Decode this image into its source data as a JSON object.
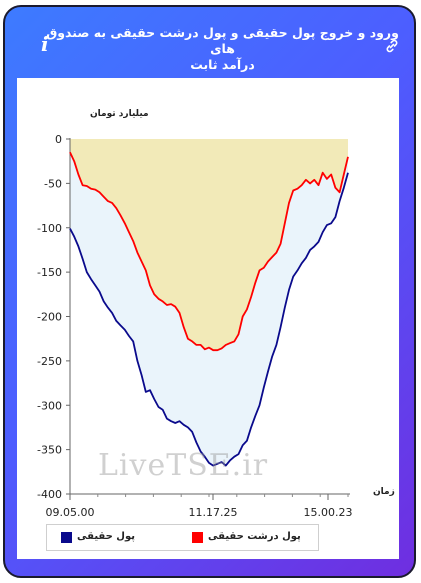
{
  "header": {
    "title_line1": "ورود و خروج پول حقیقی و پول درشت حقیقی به صندوق های",
    "title_line2": "درآمد ثابت",
    "info_icon": "i"
  },
  "chart_data": {
    "type": "area",
    "ylabel": "میلیارد تومان",
    "xlabel": "زمان",
    "ylim": [
      -400,
      0
    ],
    "yticks": [
      0,
      -50,
      -100,
      -150,
      -200,
      -250,
      -300,
      -350,
      -400
    ],
    "xticks": [
      "09.05.00",
      "11.17.25",
      "15.00.23"
    ],
    "grid": false,
    "legend": "bottom",
    "series": [
      {
        "name": "پول حقیقی",
        "color": "#0a0a8c",
        "fill": "#eaf4fb",
        "values": [
          -101,
          -110,
          -121,
          -135,
          -150,
          -158,
          -165,
          -172,
          -183,
          -190,
          -196,
          -205,
          -210,
          -215,
          -222,
          -228,
          -250,
          -266,
          -285,
          -283,
          -293,
          -302,
          -305,
          -315,
          -318,
          -320,
          -318,
          -322,
          -325,
          -330,
          -342,
          -352,
          -358,
          -365,
          -368,
          -366,
          -364,
          -368,
          -362,
          -358,
          -355,
          -345,
          -340,
          -325,
          -312,
          -300,
          -280,
          -262,
          -245,
          -232,
          -212,
          -190,
          -170,
          -155,
          -148,
          -140,
          -134,
          -125,
          -121,
          -116,
          -105,
          -97,
          -95,
          -88,
          -70,
          -55,
          -38
        ]
      },
      {
        "name": "پول درشت حقیقی",
        "color": "#ff0000",
        "fill": "#f2eab8",
        "values": [
          -15,
          -25,
          -40,
          -52,
          -53,
          -56,
          -57,
          -60,
          -65,
          -70,
          -72,
          -78,
          -86,
          -95,
          -105,
          -115,
          -128,
          -138,
          -148,
          -165,
          -175,
          -180,
          -183,
          -187,
          -186,
          -189,
          -196,
          -212,
          -225,
          -228,
          -232,
          -232,
          -237,
          -235,
          -238,
          -238,
          -236,
          -232,
          -230,
          -228,
          -220,
          -200,
          -192,
          -178,
          -162,
          -148,
          -145,
          -138,
          -133,
          -128,
          -118,
          -95,
          -72,
          -58,
          -56,
          -52,
          -46,
          -50,
          -46,
          -52,
          -38,
          -45,
          -40,
          -55,
          -60,
          -40,
          -20
        ]
      }
    ]
  },
  "watermark": "LiveTSE.ir"
}
